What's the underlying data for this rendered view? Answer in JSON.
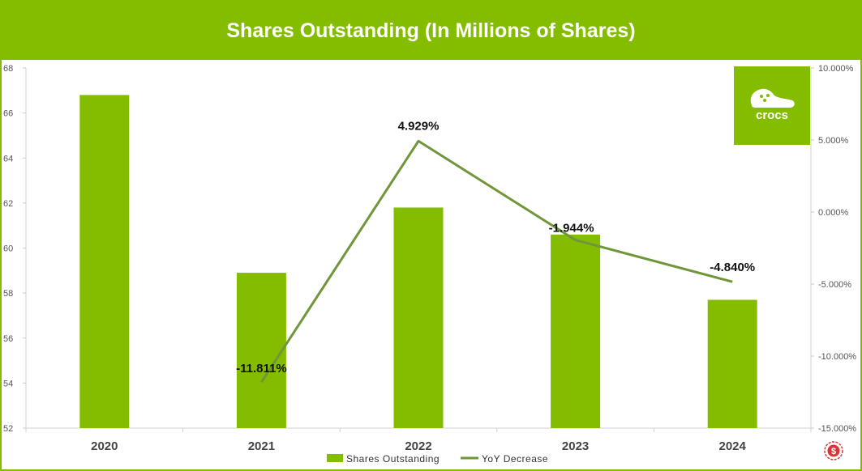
{
  "title": "Shares Outstanding (In Millions of Shares)",
  "logo": {
    "text": "crocs",
    "icon": "crocs-clog-icon"
  },
  "watermark": {
    "icon": "dollar-seal-icon"
  },
  "colors": {
    "bar": "#84bd00",
    "line": "#70963a",
    "title_bg": "#84bd00"
  },
  "chart_data": {
    "type": "bar",
    "title": "Shares Outstanding (In Millions of Shares)",
    "categories": [
      "2020",
      "2021",
      "2022",
      "2023",
      "2024"
    ],
    "series": [
      {
        "name": "Shares Outstanding",
        "type": "bar",
        "axis": "left",
        "values": [
          66.8,
          58.9,
          61.8,
          60.6,
          57.7
        ]
      },
      {
        "name": "YoY Decrease",
        "type": "line",
        "axis": "right",
        "values": [
          null,
          -11.811,
          4.929,
          -1.944,
          -4.84
        ],
        "labels": [
          "",
          "-11.811%",
          "4.929%",
          "-1.944%",
          "-4.840%"
        ]
      }
    ],
    "left_axis": {
      "ylim": [
        52,
        68
      ],
      "ticks": [
        "52",
        "54",
        "56",
        "58",
        "60",
        "62",
        "64",
        "66",
        "68"
      ]
    },
    "right_axis": {
      "ylim": [
        -15,
        10
      ],
      "ticks": [
        "-15.000%",
        "-10.000%",
        "-5.000%",
        "0.000%",
        "5.000%",
        "10.000%"
      ]
    },
    "legend": {
      "position": "bottom",
      "entries": [
        "Shares Outstanding",
        "YoY Decrease"
      ]
    },
    "grid": false
  }
}
